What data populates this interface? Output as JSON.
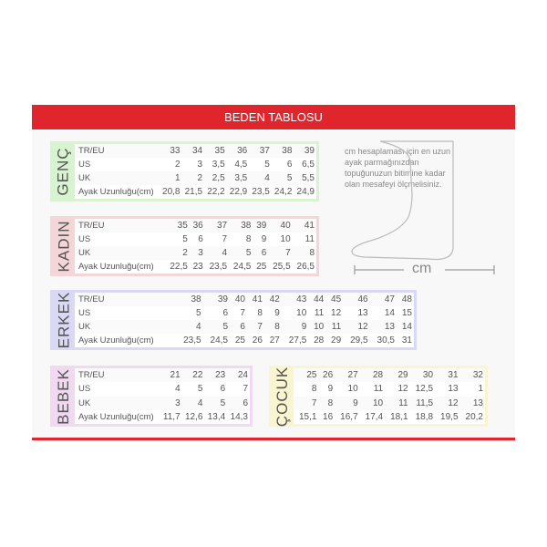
{
  "title": "BEDEN TABLOSU",
  "colors": {
    "accent": "#e0262c",
    "genc": "#d8f3cf",
    "kadin": "#f5d6d8",
    "erkek": "#d9d9f5",
    "bebek": "#f1d9f1",
    "cocuk": "#f8f5d0"
  },
  "row_labels": [
    "TR/EU",
    "US",
    "UK",
    "Ayak Uzunluğu(cm)"
  ],
  "tables": {
    "genc": {
      "name": "GENÇ",
      "rows": [
        [
          "33",
          "34",
          "35",
          "36",
          "37",
          "38",
          "39"
        ],
        [
          "2",
          "3",
          "3,5",
          "4,5",
          "5",
          "6",
          "6,5"
        ],
        [
          "1",
          "2",
          "2,5",
          "3,5",
          "4",
          "5",
          "5,5"
        ],
        [
          "20,8",
          "21,5",
          "22,2",
          "22,9",
          "23,5",
          "24,2",
          "24,9"
        ]
      ]
    },
    "kadin": {
      "name": "KADIN",
      "rows": [
        [
          "35",
          "36",
          "37",
          "38",
          "39",
          "40",
          "41"
        ],
        [
          "5",
          "6",
          "7",
          "8",
          "9",
          "10",
          "11"
        ],
        [
          "2",
          "3",
          "4",
          "5",
          "6",
          "7",
          "8"
        ],
        [
          "22,5",
          "23",
          "23,5",
          "24,5",
          "25",
          "25,5",
          "26,5"
        ]
      ]
    },
    "erkek": {
      "name": "ERKEK",
      "rows": [
        [
          "38",
          "39",
          "40",
          "41",
          "42",
          "43",
          "44",
          "45",
          "46",
          "47",
          "48"
        ],
        [
          "5",
          "6",
          "7",
          "8",
          "9",
          "10",
          "11",
          "12",
          "13",
          "14",
          "15"
        ],
        [
          "4",
          "5",
          "6",
          "7",
          "8",
          "9",
          "10",
          "11",
          "12",
          "13",
          "14"
        ],
        [
          "23,5",
          "24,5",
          "25",
          "26",
          "27",
          "27,5",
          "28",
          "29",
          "29,5",
          "30,5",
          "31"
        ]
      ]
    },
    "bebek": {
      "name": "BEBEK",
      "rows": [
        [
          "21",
          "22",
          "23",
          "24"
        ],
        [
          "4",
          "5",
          "6",
          "7"
        ],
        [
          "3",
          "4",
          "5",
          "6"
        ],
        [
          "11,7",
          "12,6",
          "13,4",
          "14,3"
        ]
      ]
    },
    "cocuk": {
      "name": "ÇOCUK",
      "rows": [
        [
          "25",
          "26",
          "27",
          "28",
          "29",
          "30",
          "31",
          "32"
        ],
        [
          "8",
          "9",
          "10",
          "11",
          "12",
          "12,5",
          "13",
          "1"
        ],
        [
          "7",
          "8",
          "9",
          "10",
          "11",
          "11,5",
          "12",
          "13"
        ],
        [
          "15,1",
          "16",
          "16,7",
          "17,4",
          "18,1",
          "18,8",
          "19,5",
          "20,2"
        ]
      ]
    }
  },
  "note": "cm hesaplaması için en uzun ayak parmağınızdan topuğunuzun bitimine kadar olan mesafeyi ölçmelisiniz.",
  "unit": "cm"
}
